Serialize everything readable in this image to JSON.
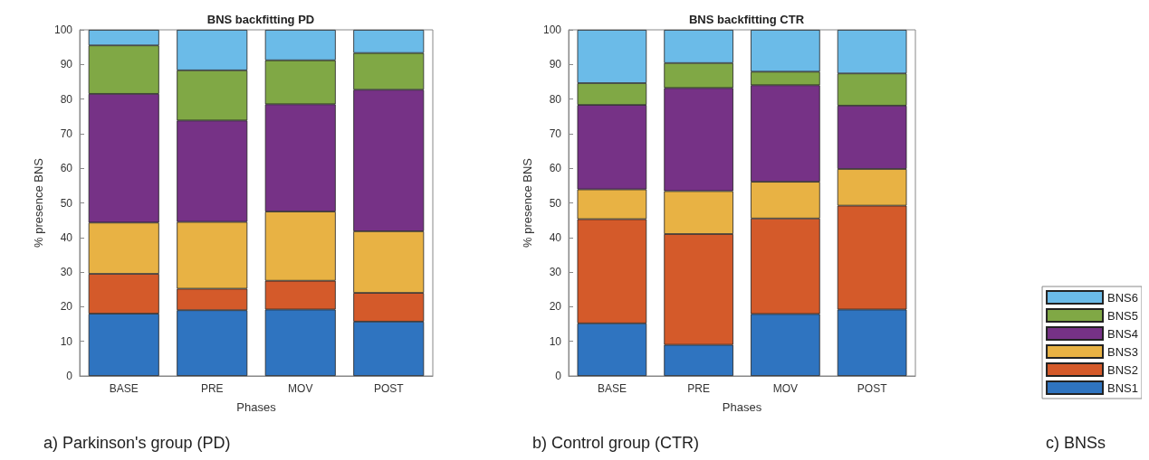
{
  "chart_data": [
    {
      "type": "bar",
      "stacked": true,
      "title": "BNS backfitting PD",
      "xlabel": "Phases",
      "ylabel": "% presence BNS",
      "categories": [
        "BASE",
        "PRE",
        "MOV",
        "POST"
      ],
      "ylim": [
        0,
        100
      ],
      "yticks": [
        0,
        10,
        20,
        30,
        40,
        50,
        60,
        70,
        80,
        90,
        100
      ],
      "grid": false,
      "legend": false,
      "annotations": [
        "a) Parkinson's group (PD)"
      ],
      "series": [
        {
          "color": "#2f74c0",
          "values": [
            18,
            19,
            19.2,
            15.7
          ]
        },
        {
          "color": "#d45a2a",
          "values": [
            11.5,
            6.2,
            8.3,
            8.3
          ]
        },
        {
          "color": "#e8b244",
          "values": [
            14.8,
            19.3,
            20,
            17.8
          ]
        },
        {
          "color": "#763286",
          "values": [
            37.2,
            29.3,
            31,
            40.9
          ]
        },
        {
          "color": "#80a845",
          "values": [
            14,
            14.5,
            12.7,
            10.6
          ]
        },
        {
          "color": "#6bbbe8",
          "values": [
            4.5,
            11.7,
            8.8,
            6.7
          ]
        }
      ]
    },
    {
      "type": "bar",
      "stacked": true,
      "title": "BNS backfitting CTR",
      "xlabel": "Phases",
      "ylabel": "% presence BNS",
      "categories": [
        "BASE",
        "PRE",
        "MOV",
        "POST"
      ],
      "ylim": [
        0,
        100
      ],
      "yticks": [
        0,
        10,
        20,
        30,
        40,
        50,
        60,
        70,
        80,
        90,
        100
      ],
      "grid": false,
      "legend": "bottom right",
      "annotations": [
        "b) Control group (CTR)",
        "c) BNSs"
      ],
      "series": [
        {
          "name": "BNS1",
          "color": "#2f74c0",
          "values": [
            15.2,
            9,
            17.9,
            19.2
          ]
        },
        {
          "name": "BNS2",
          "color": "#d45a2a",
          "values": [
            30.1,
            32,
            27.6,
            30
          ]
        },
        {
          "name": "BNS3",
          "color": "#e8b244",
          "values": [
            8.6,
            12.4,
            10.6,
            10.6
          ]
        },
        {
          "name": "BNS4",
          "color": "#763286",
          "values": [
            24.4,
            29.8,
            27.9,
            18.3
          ]
        },
        {
          "name": "BNS5",
          "color": "#80a845",
          "values": [
            6.3,
            7.2,
            3.9,
            9.3
          ]
        },
        {
          "name": "BNS6",
          "color": "#6bbbe8",
          "values": [
            15.4,
            9.6,
            12.1,
            12.6
          ]
        }
      ]
    }
  ]
}
